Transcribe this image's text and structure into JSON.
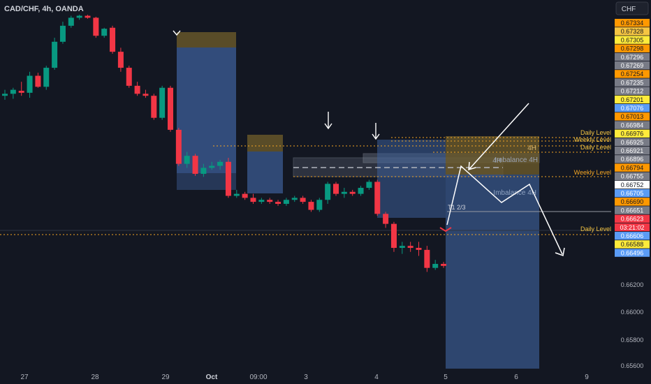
{
  "chart_data": {
    "type": "candlestick",
    "title": "CAD/CHF, 4h, OANDA",
    "currency": "CHF",
    "ylim": [
      0.6558,
      0.6736
    ],
    "y_ticks": [
      "0.66200",
      "0.66000",
      "0.65800",
      "0.65600"
    ],
    "x_ticks": [
      "27",
      "28",
      "29",
      "Oct",
      "09:00",
      "3",
      "4",
      "5",
      "6",
      "9"
    ],
    "candles": [
      {
        "o": 0.6696,
        "h": 0.6699,
        "l": 0.6694,
        "c": 0.6697
      },
      {
        "o": 0.6697,
        "h": 0.67,
        "l": 0.66945,
        "c": 0.6699
      },
      {
        "o": 0.66985,
        "h": 0.6703,
        "l": 0.6696,
        "c": 0.66975
      },
      {
        "o": 0.66975,
        "h": 0.6708,
        "l": 0.6695,
        "c": 0.6706
      },
      {
        "o": 0.6706,
        "h": 0.67075,
        "l": 0.67,
        "c": 0.67005
      },
      {
        "o": 0.67005,
        "h": 0.6711,
        "l": 0.6699,
        "c": 0.671
      },
      {
        "o": 0.671,
        "h": 0.6725,
        "l": 0.6709,
        "c": 0.6723
      },
      {
        "o": 0.6723,
        "h": 0.6733,
        "l": 0.6722,
        "c": 0.6731
      },
      {
        "o": 0.6731,
        "h": 0.6736,
        "l": 0.673,
        "c": 0.6735
      },
      {
        "o": 0.6735,
        "h": 0.67365,
        "l": 0.6734,
        "c": 0.6736
      },
      {
        "o": 0.6736,
        "h": 0.67365,
        "l": 0.67345,
        "c": 0.6735
      },
      {
        "o": 0.6735,
        "h": 0.67355,
        "l": 0.6725,
        "c": 0.6726
      },
      {
        "o": 0.6726,
        "h": 0.673,
        "l": 0.6725,
        "c": 0.67295
      },
      {
        "o": 0.673,
        "h": 0.6731,
        "l": 0.6717,
        "c": 0.6718
      },
      {
        "o": 0.6718,
        "h": 0.672,
        "l": 0.6708,
        "c": 0.671
      },
      {
        "o": 0.671,
        "h": 0.6711,
        "l": 0.67,
        "c": 0.6701
      },
      {
        "o": 0.6701,
        "h": 0.6703,
        "l": 0.6696,
        "c": 0.6697
      },
      {
        "o": 0.6697,
        "h": 0.6699,
        "l": 0.6695,
        "c": 0.6696
      },
      {
        "o": 0.6696,
        "h": 0.6697,
        "l": 0.6684,
        "c": 0.6685
      },
      {
        "o": 0.6685,
        "h": 0.6701,
        "l": 0.6684,
        "c": 0.67
      },
      {
        "o": 0.67,
        "h": 0.6701,
        "l": 0.6678,
        "c": 0.6679
      },
      {
        "o": 0.6679,
        "h": 0.668,
        "l": 0.6661,
        "c": 0.6662
      },
      {
        "o": 0.6662,
        "h": 0.6668,
        "l": 0.666,
        "c": 0.6666
      },
      {
        "o": 0.6666,
        "h": 0.6667,
        "l": 0.6656,
        "c": 0.6657
      },
      {
        "o": 0.6657,
        "h": 0.6662,
        "l": 0.66555,
        "c": 0.666
      },
      {
        "o": 0.666,
        "h": 0.6663,
        "l": 0.6659,
        "c": 0.6661
      },
      {
        "o": 0.6661,
        "h": 0.6664,
        "l": 0.6659,
        "c": 0.6663
      },
      {
        "o": 0.6663,
        "h": 0.6665,
        "l": 0.6645,
        "c": 0.6646
      },
      {
        "o": 0.6646,
        "h": 0.6649,
        "l": 0.6645,
        "c": 0.6647
      },
      {
        "o": 0.6647,
        "h": 0.6648,
        "l": 0.6644,
        "c": 0.6645
      },
      {
        "o": 0.6645,
        "h": 0.6647,
        "l": 0.6642,
        "c": 0.6643
      },
      {
        "o": 0.6643,
        "h": 0.6645,
        "l": 0.6642,
        "c": 0.6644
      },
      {
        "o": 0.6644,
        "h": 0.6645,
        "l": 0.6642,
        "c": 0.6643
      },
      {
        "o": 0.6643,
        "h": 0.6644,
        "l": 0.6641,
        "c": 0.6642
      },
      {
        "o": 0.6642,
        "h": 0.6645,
        "l": 0.6641,
        "c": 0.6644
      },
      {
        "o": 0.6644,
        "h": 0.6646,
        "l": 0.6643,
        "c": 0.6645
      },
      {
        "o": 0.6645,
        "h": 0.6646,
        "l": 0.6642,
        "c": 0.6643
      },
      {
        "o": 0.6643,
        "h": 0.6644,
        "l": 0.6638,
        "c": 0.6639
      },
      {
        "o": 0.6639,
        "h": 0.6645,
        "l": 0.6638,
        "c": 0.6644
      },
      {
        "o": 0.6644,
        "h": 0.6653,
        "l": 0.6642,
        "c": 0.6652
      },
      {
        "o": 0.6652,
        "h": 0.6653,
        "l": 0.6646,
        "c": 0.6647
      },
      {
        "o": 0.6647,
        "h": 0.665,
        "l": 0.6645,
        "c": 0.6648
      },
      {
        "o": 0.6648,
        "h": 0.6649,
        "l": 0.6646,
        "c": 0.6647
      },
      {
        "o": 0.6647,
        "h": 0.6651,
        "l": 0.6646,
        "c": 0.665
      },
      {
        "o": 0.665,
        "h": 0.6654,
        "l": 0.6649,
        "c": 0.6653
      },
      {
        "o": 0.6653,
        "h": 0.6654,
        "l": 0.6636,
        "c": 0.6637
      },
      {
        "o": 0.6637,
        "h": 0.6638,
        "l": 0.663,
        "c": 0.6632
      },
      {
        "o": 0.6632,
        "h": 0.6633,
        "l": 0.6618,
        "c": 0.662
      },
      {
        "o": 0.662,
        "h": 0.6623,
        "l": 0.6617,
        "c": 0.6621
      },
      {
        "o": 0.6621,
        "h": 0.6623,
        "l": 0.6618,
        "c": 0.662
      },
      {
        "o": 0.662,
        "h": 0.6623,
        "l": 0.6616,
        "c": 0.6619
      },
      {
        "o": 0.6619,
        "h": 0.6621,
        "l": 0.6608,
        "c": 0.661
      },
      {
        "o": 0.661,
        "h": 0.6614,
        "l": 0.6609,
        "c": 0.6612
      },
      {
        "o": 0.6612,
        "h": 0.6613,
        "l": 0.661,
        "c": 0.6611
      }
    ],
    "price_labels": [
      {
        "text": "0.67334",
        "color": "#ff9800"
      },
      {
        "text": "0.67328",
        "color": "#f5c542"
      },
      {
        "text": "0.67305",
        "color": "#ffeb3b"
      },
      {
        "text": "0.67298",
        "color": "#ff9800"
      },
      {
        "text": "0.67296",
        "color": "#787b86"
      },
      {
        "text": "0.67269",
        "color": "#787b86"
      },
      {
        "text": "0.67254",
        "color": "#ff9800"
      },
      {
        "text": "0.67235",
        "color": "#787b86"
      },
      {
        "text": "0.67212",
        "color": "#787b86"
      },
      {
        "text": "0.67201",
        "color": "#ffeb3b"
      },
      {
        "text": "0.67076",
        "color": "#5b9cf6"
      },
      {
        "text": "0.67013",
        "color": "#ff9800"
      },
      {
        "text": "0.66984",
        "color": "#787b86"
      },
      {
        "text": "0.66976",
        "color": "#ffeb3b"
      },
      {
        "text": "0.66925",
        "color": "#787b86"
      },
      {
        "text": "0.66921",
        "color": "#787b86"
      },
      {
        "text": "0.66896",
        "color": "#787b86"
      },
      {
        "text": "0.66794",
        "color": "#ff9800"
      },
      {
        "text": "0.66755",
        "color": "#787b86"
      },
      {
        "text": "0.66752",
        "color": "#ffffff"
      },
      {
        "text": "0.66705",
        "color": "#5b9cf6"
      },
      {
        "text": "0.66690",
        "color": "#ff9800"
      },
      {
        "text": "0.66651",
        "color": "#787b86"
      },
      {
        "text": "0.66623",
        "color": "#f23645"
      },
      {
        "text": "03:21:02",
        "color": "#f23645"
      },
      {
        "text": "0.66606",
        "color": "#5b9cf6"
      },
      {
        "text": "0.66588",
        "color": "#ffeb3b"
      },
      {
        "text": "0.66496",
        "color": "#5b9cf6"
      }
    ],
    "annotations": {
      "daily_level": "Daily Level",
      "weekly_level": "Weekly Level",
      "imbalance_4h": "Imbalance 4H",
      "label_4h": "4H",
      "t1": "T1 2/3"
    },
    "colors": {
      "up": "#089981",
      "down": "#f23645",
      "bg": "#131722",
      "grid": "#2a2e39",
      "level": "#f5a623"
    }
  }
}
